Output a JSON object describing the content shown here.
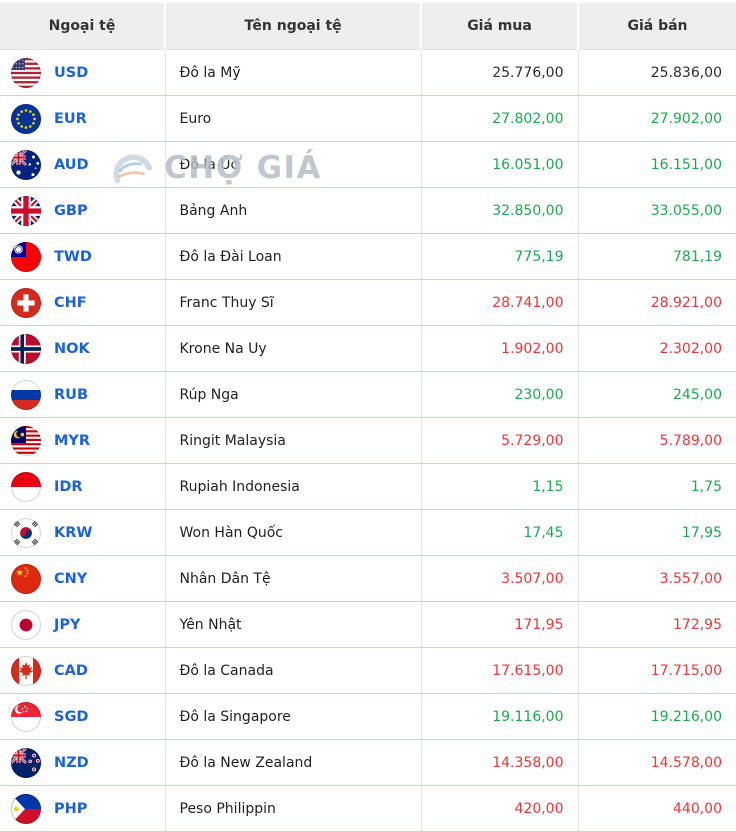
{
  "table": {
    "headers": [
      {
        "label": "Ngoại tệ"
      },
      {
        "label": "Tên ngoại tệ"
      },
      {
        "label": "Giá mua"
      },
      {
        "label": "Giá bán"
      }
    ],
    "rows": [
      {
        "code": "USD",
        "flag": "usd-flag-icon",
        "name": "Đô la Mỹ",
        "buy": "25.776,00",
        "sell": "25.836,00",
        "trend": "neutral"
      },
      {
        "code": "EUR",
        "flag": "eur-flag-icon",
        "name": "Euro",
        "buy": "27.802,00",
        "sell": "27.902,00",
        "trend": "up"
      },
      {
        "code": "AUD",
        "flag": "aud-flag-icon",
        "name": "Đô la Úc",
        "buy": "16.051,00",
        "sell": "16.151,00",
        "trend": "up"
      },
      {
        "code": "GBP",
        "flag": "gbp-flag-icon",
        "name": "Bảng Anh",
        "buy": "32.850,00",
        "sell": "33.055,00",
        "trend": "up"
      },
      {
        "code": "TWD",
        "flag": "twd-flag-icon",
        "name": "Đô la Đài Loan",
        "buy": "775,19",
        "sell": "781,19",
        "trend": "up"
      },
      {
        "code": "CHF",
        "flag": "chf-flag-icon",
        "name": "Franc Thuy Sĩ",
        "buy": "28.741,00",
        "sell": "28.921,00",
        "trend": "down"
      },
      {
        "code": "NOK",
        "flag": "nok-flag-icon",
        "name": "Krone Na Uy",
        "buy": "1.902,00",
        "sell": "2.302,00",
        "trend": "down"
      },
      {
        "code": "RUB",
        "flag": "rub-flag-icon",
        "name": "Rúp Nga",
        "buy": "230,00",
        "sell": "245,00",
        "trend": "up"
      },
      {
        "code": "MYR",
        "flag": "myr-flag-icon",
        "name": "Ringit Malaysia",
        "buy": "5.729,00",
        "sell": "5.789,00",
        "trend": "down"
      },
      {
        "code": "IDR",
        "flag": "idr-flag-icon",
        "name": "Rupiah Indonesia",
        "buy": "1,15",
        "sell": "1,75",
        "trend": "up"
      },
      {
        "code": "KRW",
        "flag": "krw-flag-icon",
        "name": "Won Hàn Quốc",
        "buy": "17,45",
        "sell": "17,95",
        "trend": "up"
      },
      {
        "code": "CNY",
        "flag": "cny-flag-icon",
        "name": "Nhân Dân Tệ",
        "buy": "3.507,00",
        "sell": "3.557,00",
        "trend": "down"
      },
      {
        "code": "JPY",
        "flag": "jpy-flag-icon",
        "name": "Yên Nhật",
        "buy": "171,95",
        "sell": "172,95",
        "trend": "down"
      },
      {
        "code": "CAD",
        "flag": "cad-flag-icon",
        "name": "Đô la Canada",
        "buy": "17.615,00",
        "sell": "17.715,00",
        "trend": "down"
      },
      {
        "code": "SGD",
        "flag": "sgd-flag-icon",
        "name": "Đô la Singapore",
        "buy": "19.116,00",
        "sell": "19.216,00",
        "trend": "up"
      },
      {
        "code": "NZD",
        "flag": "nzd-flag-icon",
        "name": "Đô la New Zealand",
        "buy": "14.358,00",
        "sell": "14.578,00",
        "trend": "down"
      },
      {
        "code": "PHP",
        "flag": "php-flag-icon",
        "name": "Peso Philippin",
        "buy": "420,00",
        "sell": "440,00",
        "trend": "down"
      }
    ]
  },
  "watermark": {
    "text": "CHỢ GIÁ"
  },
  "colors": {
    "up": "#1fa750",
    "down": "#e8363a",
    "neutral": "#2d2d2d",
    "code_blue": "#1a62d6"
  }
}
